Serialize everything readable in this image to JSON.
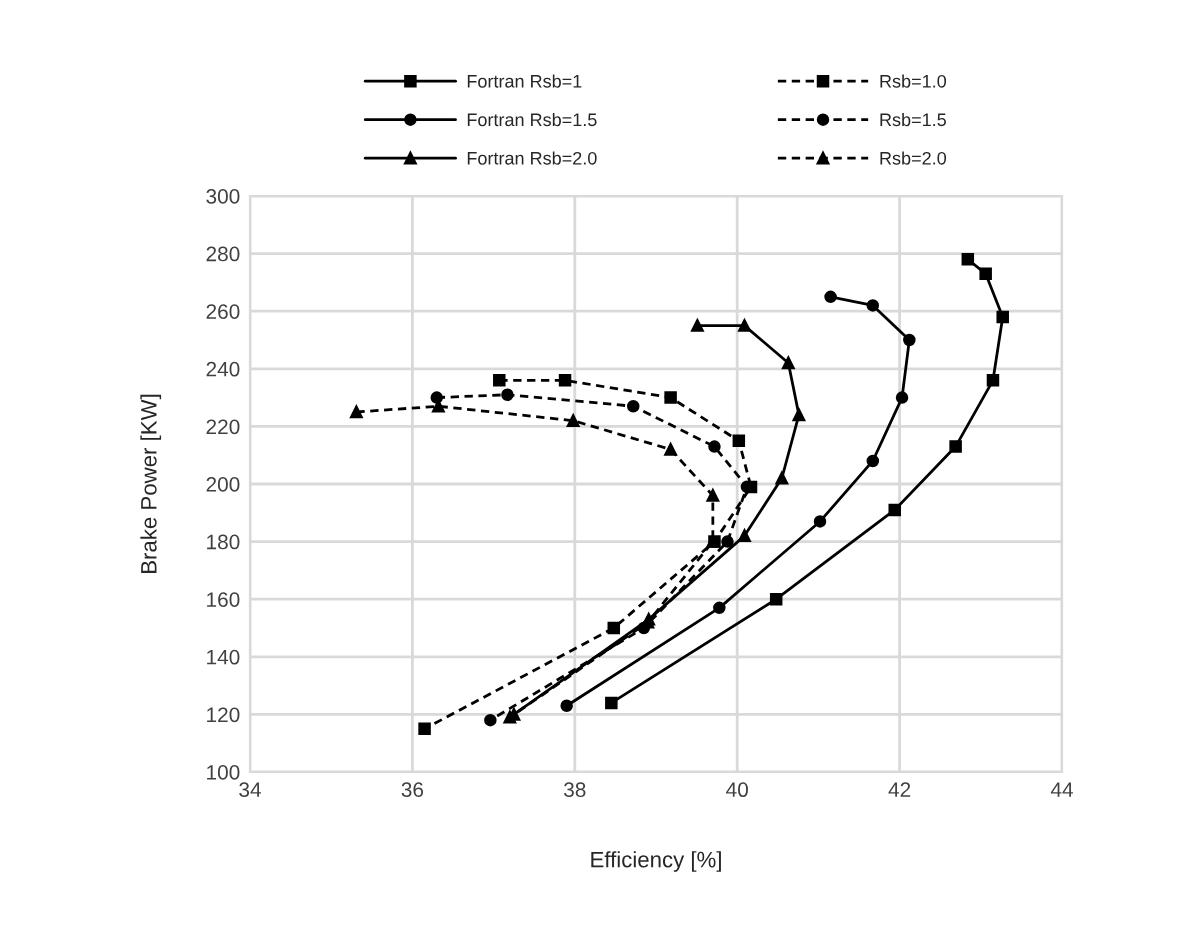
{
  "chart_data": {
    "type": "line",
    "xlabel": "Efficiency [%]",
    "ylabel": "Brake Power [KW]",
    "xlim": [
      34,
      44
    ],
    "xticks": [
      34,
      36,
      38,
      40,
      42,
      44
    ],
    "ylim": [
      100,
      300
    ],
    "yticks": [
      100,
      120,
      140,
      160,
      180,
      200,
      220,
      240,
      260,
      280,
      300
    ],
    "grid": true,
    "legend": "top",
    "series": [
      {
        "name": "Fortran Rsb=1",
        "color": "#000000",
        "marker": "square",
        "line_style": "solid",
        "x": [
          42.84,
          43.06,
          43.27,
          43.15,
          42.69,
          41.94,
          40.48,
          38.45
        ],
        "values": [
          278,
          273,
          258,
          236,
          213,
          191,
          160,
          124
        ]
      },
      {
        "name": "Fortran Rsb=1.5",
        "color": "#000000",
        "marker": "circle",
        "line_style": "solid",
        "x": [
          41.15,
          41.67,
          42.12,
          42.03,
          41.67,
          41.02,
          39.78,
          37.9
        ],
        "values": [
          265,
          262,
          250,
          230,
          208,
          187,
          157,
          123
        ]
      },
      {
        "name": "Fortran Rsb=2.0",
        "color": "#000000",
        "marker": "triangle",
        "line_style": "solid",
        "x": [
          39.51,
          40.09,
          40.63,
          40.76,
          40.55,
          40.09,
          38.91,
          37.25
        ],
        "values": [
          255,
          255,
          242,
          224,
          202,
          182,
          153,
          120
        ]
      },
      {
        "name": "Rsb=1.0",
        "color": "#000000",
        "marker": "square",
        "line_style": "dashed",
        "x": [
          37.07,
          37.88,
          39.18,
          40.02,
          40.17,
          39.72,
          38.48,
          36.15
        ],
        "values": [
          236,
          236,
          230,
          215,
          199,
          180,
          150,
          115
        ]
      },
      {
        "name": "Rsb=1.5",
        "color": "#000000",
        "marker": "circle",
        "line_style": "dashed",
        "x": [
          36.3,
          37.17,
          38.72,
          39.72,
          40.12,
          39.88,
          38.85,
          36.96
        ],
        "values": [
          230,
          231,
          227,
          213,
          199,
          180,
          150,
          118
        ]
      },
      {
        "name": "Rsb=2.0",
        "color": "#000000",
        "marker": "triangle",
        "line_style": "dashed",
        "x": [
          35.31,
          36.32,
          37.98,
          39.18,
          39.7,
          39.7,
          38.9,
          37.2
        ],
        "values": [
          225,
          227,
          222,
          212,
          196,
          180,
          152,
          119
        ]
      }
    ]
  }
}
